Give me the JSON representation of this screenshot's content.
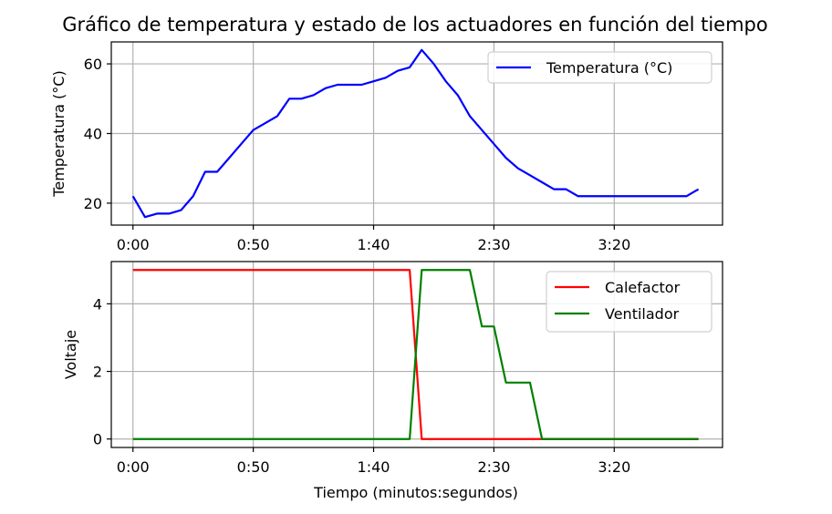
{
  "chart_data": [
    {
      "type": "line",
      "title": "Gráfico de temperatura y estado de los actuadores en función del tiempo",
      "ylabel": "Temperatura (°C)",
      "xlabel": "",
      "xlim": [
        -9,
        245
      ],
      "ylim": [
        13.7,
        66.3
      ],
      "x_tick_values": [
        0,
        50,
        100,
        150,
        200
      ],
      "x_tick_labels": [
        "0:00",
        "0:50",
        "1:40",
        "2:30",
        "3:20"
      ],
      "y_tick_values": [
        20,
        40,
        60
      ],
      "y_tick_labels": [
        "20",
        "40",
        "60"
      ],
      "grid": true,
      "legend_position": "top-right",
      "series": [
        {
          "name": "Temperatura (°C)",
          "color": "#0000ff",
          "x": [
            0,
            5,
            10,
            15,
            20,
            25,
            30,
            35,
            40,
            45,
            50,
            55,
            60,
            65,
            70,
            75,
            80,
            85,
            90,
            95,
            100,
            105,
            110,
            115,
            120,
            125,
            130,
            135,
            140,
            145,
            150,
            155,
            160,
            165,
            170,
            175,
            180,
            185,
            190,
            195,
            200,
            205,
            210,
            215,
            220,
            225,
            230,
            235
          ],
          "y": [
            22,
            16,
            17,
            17,
            18,
            22,
            29,
            29,
            33,
            37,
            41,
            43,
            45,
            50,
            50,
            51,
            53,
            54,
            54,
            54,
            55,
            56,
            58,
            59,
            64,
            60,
            55,
            51,
            45,
            41,
            37,
            33,
            30,
            28,
            26,
            24,
            24,
            22,
            22,
            22,
            22,
            22,
            22,
            22,
            22,
            22,
            22,
            24
          ]
        }
      ]
    },
    {
      "type": "line",
      "title": "",
      "ylabel": "Voltaje",
      "xlabel": "Tiempo (minutos:segundos)",
      "xlim": [
        -9,
        245
      ],
      "ylim": [
        -0.25,
        5.25
      ],
      "x_tick_values": [
        0,
        50,
        100,
        150,
        200
      ],
      "x_tick_labels": [
        "0:00",
        "0:50",
        "1:40",
        "2:30",
        "3:20"
      ],
      "y_tick_values": [
        0,
        2,
        4
      ],
      "y_tick_labels": [
        "0",
        "2",
        "4"
      ],
      "grid": true,
      "legend_position": "top-right",
      "series": [
        {
          "name": "Calefactor",
          "color": "#ff0000",
          "x": [
            0,
            115,
            120,
            235
          ],
          "y": [
            5,
            5,
            0,
            0
          ]
        },
        {
          "name": "Ventilador",
          "color": "#008000",
          "x": [
            0,
            115,
            120,
            140,
            145,
            150,
            155,
            165,
            170,
            235
          ],
          "y": [
            0,
            0,
            5,
            5,
            3.33,
            3.33,
            1.67,
            1.67,
            0,
            0
          ]
        }
      ]
    }
  ]
}
